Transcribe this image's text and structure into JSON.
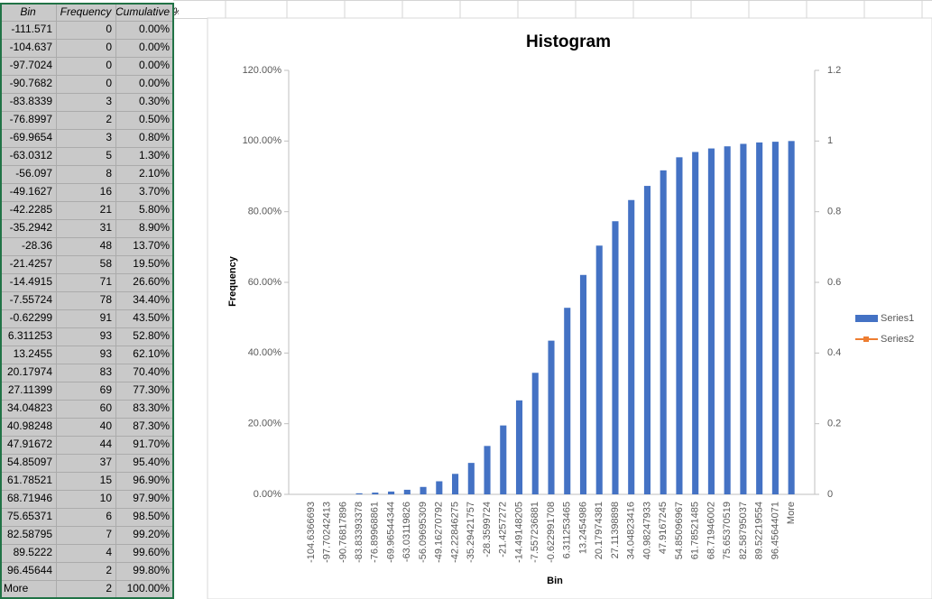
{
  "spreadsheet": {
    "headers": [
      "Bin",
      "Frequency",
      "Cumulative %"
    ],
    "rows": [
      [
        "-111.571",
        "0",
        "0.00%"
      ],
      [
        "-104.637",
        "0",
        "0.00%"
      ],
      [
        "-97.7024",
        "0",
        "0.00%"
      ],
      [
        "-90.7682",
        "0",
        "0.00%"
      ],
      [
        "-83.8339",
        "3",
        "0.30%"
      ],
      [
        "-76.8997",
        "2",
        "0.50%"
      ],
      [
        "-69.9654",
        "3",
        "0.80%"
      ],
      [
        "-63.0312",
        "5",
        "1.30%"
      ],
      [
        "-56.097",
        "8",
        "2.10%"
      ],
      [
        "-49.1627",
        "16",
        "3.70%"
      ],
      [
        "-42.2285",
        "21",
        "5.80%"
      ],
      [
        "-35.2942",
        "31",
        "8.90%"
      ],
      [
        "-28.36",
        "48",
        "13.70%"
      ],
      [
        "-21.4257",
        "58",
        "19.50%"
      ],
      [
        "-14.4915",
        "71",
        "26.60%"
      ],
      [
        "-7.55724",
        "78",
        "34.40%"
      ],
      [
        "-0.62299",
        "91",
        "43.50%"
      ],
      [
        "6.311253",
        "93",
        "52.80%"
      ],
      [
        "13.2455",
        "93",
        "62.10%"
      ],
      [
        "20.17974",
        "83",
        "70.40%"
      ],
      [
        "27.11399",
        "69",
        "77.30%"
      ],
      [
        "34.04823",
        "60",
        "83.30%"
      ],
      [
        "40.98248",
        "40",
        "87.30%"
      ],
      [
        "47.91672",
        "44",
        "91.70%"
      ],
      [
        "54.85097",
        "37",
        "95.40%"
      ],
      [
        "61.78521",
        "15",
        "96.90%"
      ],
      [
        "68.71946",
        "10",
        "97.90%"
      ],
      [
        "75.65371",
        "6",
        "98.50%"
      ],
      [
        "82.58795",
        "7",
        "99.20%"
      ],
      [
        "89.5222",
        "4",
        "99.60%"
      ],
      [
        "96.45644",
        "2",
        "99.80%"
      ],
      [
        "More",
        "2",
        "100.00%"
      ]
    ]
  },
  "chart_data": {
    "type": "bar",
    "title": "Histogram",
    "x_label": "Bin",
    "y_label": "Frequency",
    "categories": [
      "-104.6366693",
      "-97.70242413",
      "-90.76817896",
      "-83.83393378",
      "-76.89968861",
      "-69.96544344",
      "-63.03119826",
      "-56.09695309",
      "-49.16270792",
      "-42.22846275",
      "-35.29421757",
      "-28.3599724",
      "-21.4257272",
      "-14.49148205",
      "-7.557236881",
      "-0.622991708",
      "6.311253465",
      "13.2454986",
      "20.17974381",
      "27.11398898",
      "34.04823416",
      "40.98247933",
      "47.9167245",
      "54.85096967",
      "61.78521485",
      "68.71946002",
      "75.65370519",
      "82.58795037",
      "89.52219554",
      "96.45644071",
      "More"
    ],
    "series": [
      {
        "name": "Series1",
        "color": "#4472c4",
        "axis": "y2",
        "values": [
          0,
          0,
          0,
          0.003,
          0.005,
          0.008,
          0.013,
          0.021,
          0.037,
          0.058,
          0.089,
          0.137,
          0.195,
          0.266,
          0.344,
          0.435,
          0.528,
          0.621,
          0.704,
          0.773,
          0.833,
          0.873,
          0.917,
          0.954,
          0.969,
          0.979,
          0.985,
          0.992,
          0.996,
          0.998,
          1
        ]
      },
      {
        "name": "Series2",
        "color": "#ed7d31"
      }
    ],
    "ylim": [
      0,
      120
    ],
    "yticks": [
      {
        "value": 0,
        "label": "0.00%"
      },
      {
        "value": 20,
        "label": "20.00%"
      },
      {
        "value": 40,
        "label": "40.00%"
      },
      {
        "value": 60,
        "label": "60.00%"
      },
      {
        "value": 80,
        "label": "80.00%"
      },
      {
        "value": 100,
        "label": "100.00%"
      },
      {
        "value": 120,
        "label": "120.00%"
      }
    ],
    "y2lim": [
      0,
      1.2
    ],
    "y2ticks": [
      0,
      0.2,
      0.4,
      0.6,
      0.8,
      1,
      1.2
    ],
    "legend": "right"
  }
}
